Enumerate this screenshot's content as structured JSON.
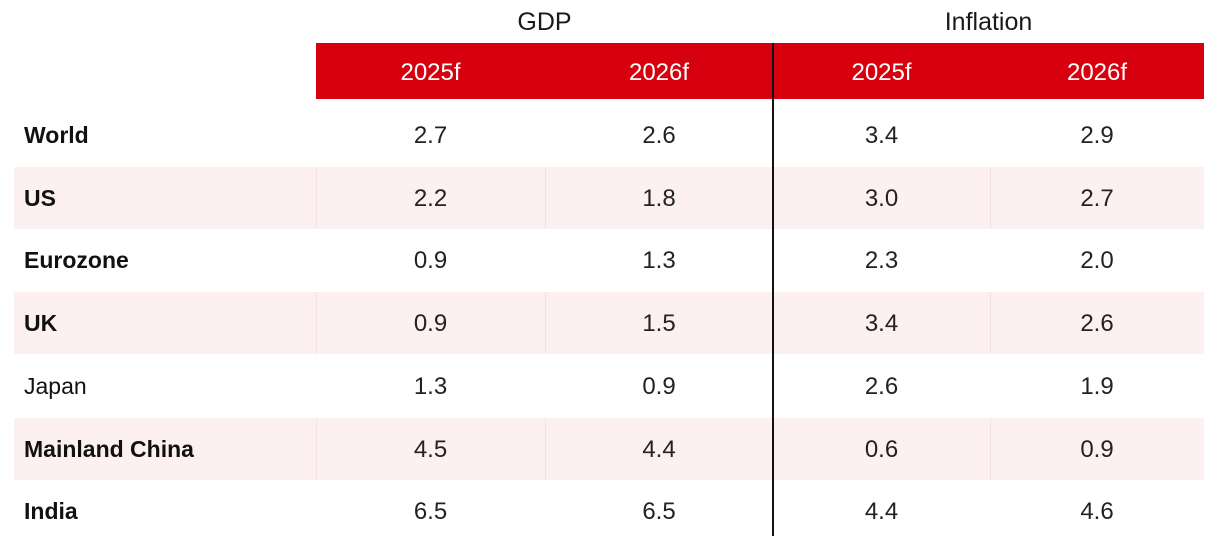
{
  "groups": {
    "gdp": "GDP",
    "inflation": "Inflation"
  },
  "columns": [
    "2025f",
    "2026f",
    "2025f",
    "2026f"
  ],
  "colors": {
    "header_bg": "#d7000f",
    "header_text": "#ffffff",
    "row_shade": "#fdf0f1",
    "divider": "#111111"
  },
  "rows": [
    {
      "label": "World",
      "values": [
        "2.7",
        "2.6",
        "3.4",
        "2.9"
      ]
    },
    {
      "label": "US",
      "values": [
        "2.2",
        "1.8",
        "3.0",
        "2.7"
      ]
    },
    {
      "label": "Eurozone",
      "values": [
        "0.9",
        "1.3",
        "2.3",
        "2.0"
      ]
    },
    {
      "label": "UK",
      "values": [
        "0.9",
        "1.5",
        "3.4",
        "2.6"
      ]
    },
    {
      "label": "Japan",
      "values": [
        "1.3",
        "0.9",
        "2.6",
        "1.9"
      ]
    },
    {
      "label": "Mainland China",
      "values": [
        "4.5",
        "4.4",
        "0.6",
        "0.9"
      ]
    },
    {
      "label": "India",
      "values": [
        "6.5",
        "6.5",
        "4.4",
        "4.6"
      ]
    }
  ]
}
